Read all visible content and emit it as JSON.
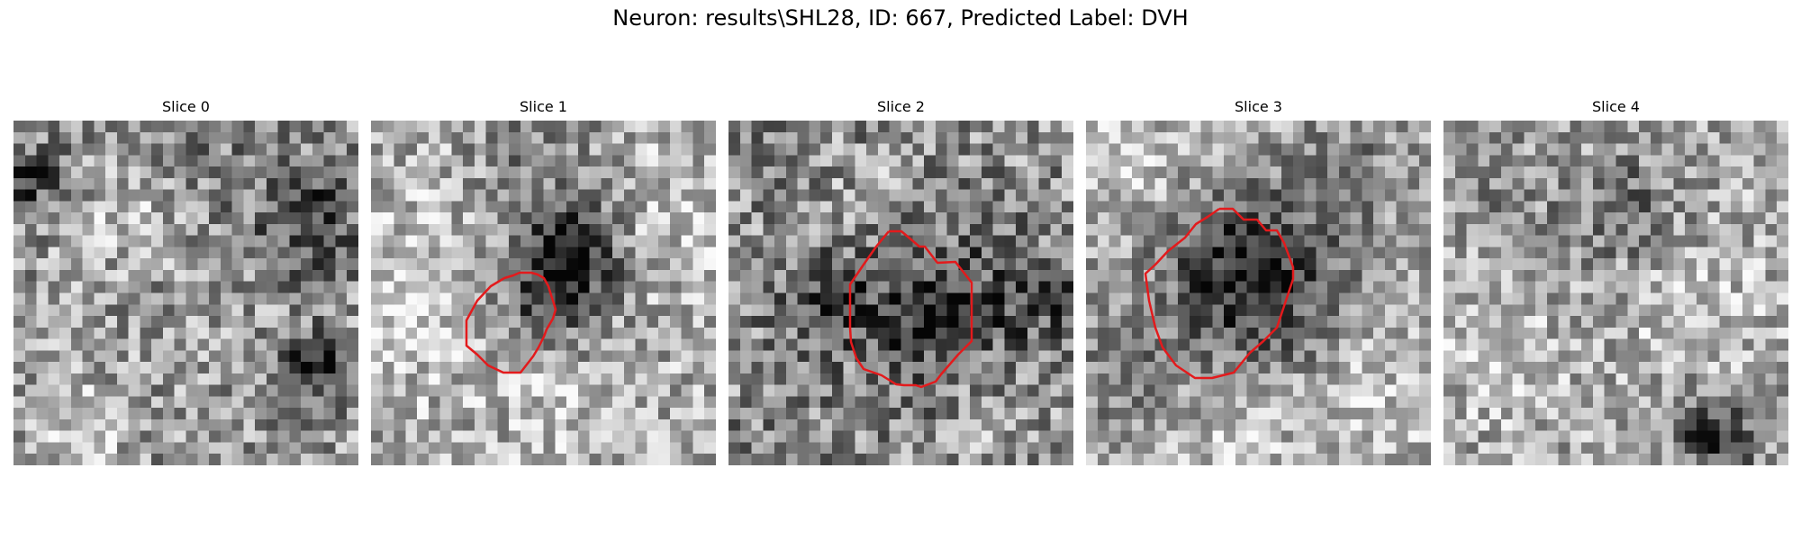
{
  "figure": {
    "title": "Neuron: results\\SHL28, ID: 667, Predicted Label: DVH"
  },
  "panels": [
    {
      "title": "Slice 0",
      "has_contour": false
    },
    {
      "title": "Slice 1",
      "has_contour": true
    },
    {
      "title": "Slice 2",
      "has_contour": true
    },
    {
      "title": "Slice 3",
      "has_contour": true
    },
    {
      "title": "Slice 4",
      "has_contour": false
    }
  ],
  "colors": {
    "contour": "#e31a1c",
    "colormap": "gray"
  }
}
